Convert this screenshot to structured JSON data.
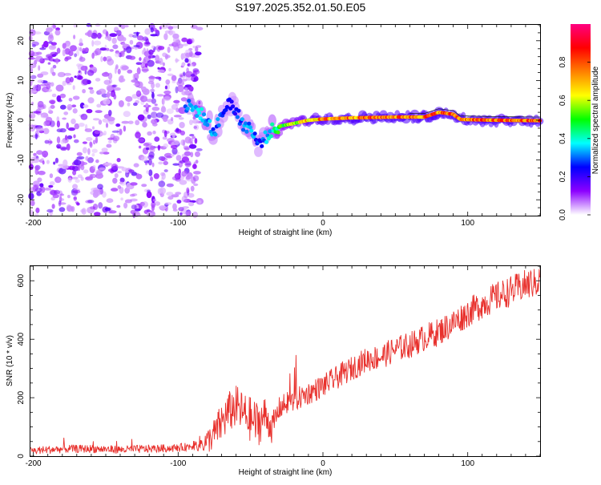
{
  "figure": {
    "title": "S197.2025.352.01.50.E05"
  },
  "chart_data": [
    {
      "type": "heatmap",
      "name": "spectrogram",
      "xlabel": "Height of straight line (km)",
      "ylabel": "Frequency (Hz)",
      "xlim": [
        -202,
        150
      ],
      "ylim": [
        -24,
        24
      ],
      "xticks": [
        -200,
        -100,
        0,
        100
      ],
      "yticks": [
        -20,
        -10,
        0,
        10,
        20
      ],
      "colorbar": {
        "label": "Normalized spectral amplitude",
        "range": [
          0,
          1
        ],
        "ticks": [
          "0.0",
          "0.2",
          "0.4",
          "0.6",
          "0.8"
        ],
        "colors": [
          "#ffffff",
          "#8c00ff",
          "#0000ff",
          "#00ffff",
          "#00ff00",
          "#ffff00",
          "#ff8000",
          "#ff0000",
          "#ff0080"
        ]
      },
      "noise_region_km": [
        -202,
        -85
      ],
      "noise_level": 0.15,
      "signal_track": [
        {
          "x": -92,
          "y": 3.5,
          "a": 0.35
        },
        {
          "x": -85,
          "y": 2.0,
          "a": 0.4
        },
        {
          "x": -75,
          "y": -3.0,
          "a": 0.35
        },
        {
          "x": -65,
          "y": 5.0,
          "a": 0.3
        },
        {
          "x": -60,
          "y": 2.0,
          "a": 0.3
        },
        {
          "x": -55,
          "y": -1.0,
          "a": 0.35
        },
        {
          "x": -50,
          "y": -2.0,
          "a": 0.4
        },
        {
          "x": -45,
          "y": -6.0,
          "a": 0.3
        },
        {
          "x": -40,
          "y": -4.5,
          "a": 0.35
        },
        {
          "x": -35,
          "y": -2.5,
          "a": 0.45
        },
        {
          "x": -30,
          "y": -1.5,
          "a": 0.55
        },
        {
          "x": -20,
          "y": -0.8,
          "a": 0.7
        },
        {
          "x": -10,
          "y": 0.0,
          "a": 0.8
        },
        {
          "x": 0,
          "y": 0.3,
          "a": 0.85
        },
        {
          "x": 20,
          "y": 0.6,
          "a": 0.9
        },
        {
          "x": 50,
          "y": 0.8,
          "a": 0.9
        },
        {
          "x": 70,
          "y": 0.8,
          "a": 0.9
        },
        {
          "x": 80,
          "y": 2.0,
          "a": 0.9
        },
        {
          "x": 90,
          "y": 1.5,
          "a": 0.9
        },
        {
          "x": 95,
          "y": 0.2,
          "a": 0.9
        },
        {
          "x": 120,
          "y": 0.0,
          "a": 0.9
        },
        {
          "x": 150,
          "y": -0.1,
          "a": 0.9
        }
      ]
    },
    {
      "type": "line",
      "name": "snr",
      "xlabel": "Height of straight line (km)",
      "ylabel": "SNR (10 * v/v)",
      "xlim": [
        -202,
        150
      ],
      "ylim": [
        0,
        650
      ],
      "xticks": [
        -200,
        -100,
        0,
        100
      ],
      "yticks": [
        0,
        200,
        400,
        600
      ],
      "color": "#e8302c",
      "series": [
        {
          "name": "SNR",
          "x": [
            -202,
            -190,
            -175,
            -160,
            -140,
            -120,
            -100,
            -90,
            -80,
            -75,
            -70,
            -65,
            -60,
            -55,
            -50,
            -45,
            -40,
            -35,
            -30,
            -25,
            -20,
            -10,
            0,
            10,
            20,
            30,
            40,
            50,
            60,
            70,
            80,
            90,
            100,
            110,
            120,
            130,
            140,
            150
          ],
          "y": [
            18,
            22,
            25,
            25,
            22,
            25,
            28,
            35,
            50,
            75,
            115,
            150,
            170,
            145,
            125,
            110,
            140,
            95,
            165,
            180,
            190,
            215,
            240,
            270,
            300,
            330,
            340,
            365,
            380,
            405,
            425,
            455,
            490,
            520,
            545,
            565,
            585,
            600
          ]
        }
      ],
      "noise_amplitude": [
        {
          "x": -202,
          "a": 14
        },
        {
          "x": -90,
          "a": 14
        },
        {
          "x": -70,
          "a": 70
        },
        {
          "x": -45,
          "a": 80
        },
        {
          "x": -30,
          "a": 40
        },
        {
          "x": 0,
          "a": 40
        },
        {
          "x": 150,
          "a": 55
        }
      ]
    }
  ]
}
